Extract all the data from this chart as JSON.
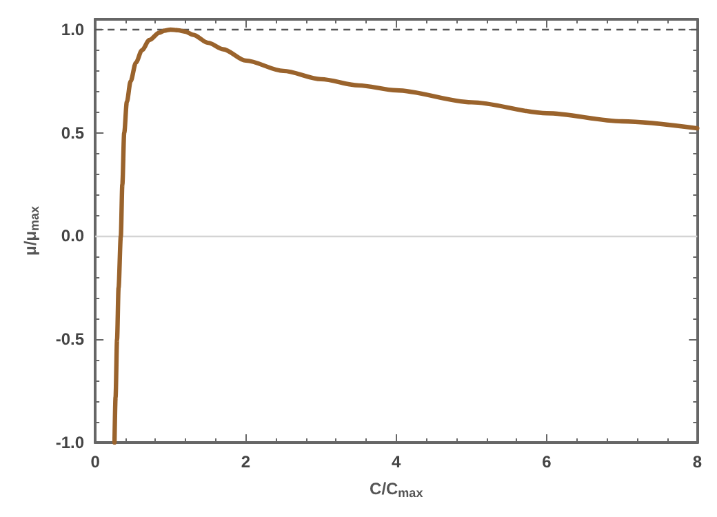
{
  "chart_data": {
    "type": "line",
    "xlabel": "C/C$_{max}$",
    "ylabel": "μ/μ$_{max}$",
    "series": [
      {
        "color": "#9a632c",
        "x": [
          0.256,
          0.27,
          0.29,
          0.31,
          0.34,
          0.36,
          0.385,
          0.42,
          0.47,
          0.54,
          0.62,
          0.72,
          0.85,
          0.92,
          1.0,
          1.1,
          1.2,
          1.3,
          1.5,
          1.7,
          2,
          2.5,
          3,
          3.5,
          4,
          5,
          6,
          7,
          8
        ],
        "values": [
          -1,
          -0.78,
          -0.5,
          -0.25,
          0,
          0.25,
          0.5,
          0.65,
          0.75,
          0.84,
          0.9,
          0.95,
          0.985,
          0.995,
          1.0,
          0.997,
          0.99,
          0.975,
          0.936,
          0.905,
          0.85,
          0.8,
          0.76,
          0.73,
          0.706,
          0.648,
          0.595,
          0.556,
          0.522
        ]
      }
    ],
    "xlim": [
      0,
      8
    ],
    "xticks": [
      0,
      2,
      4,
      6,
      8
    ],
    "ylim": [
      -1,
      1.05
    ],
    "yticks": [
      {
        "value": -1,
        "label": "-1.0"
      },
      {
        "value": -0.5,
        "label": "-0.5"
      },
      {
        "value": 0,
        "label": "0.0"
      },
      {
        "value": 0.5,
        "label": "0.5"
      },
      {
        "value": 1,
        "label": "1.0"
      }
    ],
    "ref_lines": [
      {
        "axis": "y",
        "value": 1,
        "color": "#555555",
        "line_style": "dashed"
      },
      {
        "axis": "y",
        "value": 0,
        "color": "#d4d4d4",
        "line_style": "solid"
      }
    ],
    "marker": "none",
    "line_style": "solid"
  }
}
